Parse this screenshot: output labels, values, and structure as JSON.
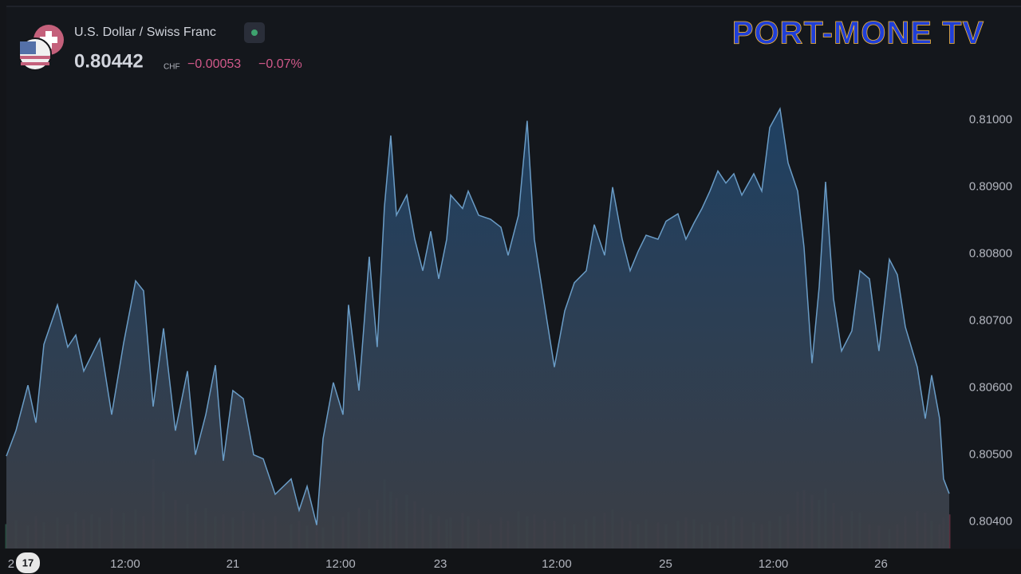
{
  "chart_data": {
    "type": "area",
    "title": "U.S. Dollar / Swiss Franc",
    "price": "0.80442",
    "currency": "CHF",
    "change": "−0.00053",
    "change_pct": "−0.07%",
    "logo": "PORT-MONE TV",
    "line_color": "#6a9cc6",
    "x": [
      0,
      1.07,
      2.4,
      3.29,
      4.18,
      5.69,
      6.84,
      7.73,
      8.62,
      9.51,
      10.4,
      11.73,
      13.07,
      14.4,
      15.29,
      16.36,
      17.51,
      18.84,
      20.18,
      21.07,
      22.22,
      23.29,
      24.18,
      25.24,
      26.4,
      27.56,
      28.62,
      29.96,
      31.73,
      32.62,
      33.51,
      34.58,
      35.29,
      36.44,
      37.51,
      38.13,
      39.29,
      40.44,
      41.33,
      42.13,
      42.84,
      43.47,
      44.62,
      45.51,
      46.4,
      47.29,
      48.18,
      49.07,
      49.51,
      50.84,
      51.47,
      52.62,
      53.96,
      55.11,
      55.91,
      57.07,
      58.04,
      58.84,
      60,
      61.07,
      62.22,
      63.29,
      64.62,
      65.51,
      66.67,
      67.56,
      68.62,
      69.51,
      70.4,
      71.29,
      72.62,
      73.51,
      74.84,
      75.73,
      76.62,
      77.51,
      78.4,
      79.29,
      80.18,
      81.07,
      81.96,
      83.29,
      84.18,
      85.07,
      86.22,
      87.11,
      88.18,
      88.89,
      89.78,
      90.58,
      91.29,
      92.18,
      93.07,
      94.22,
      95.11,
      96.18,
      97.24,
      98.4,
      99.29,
      100.18,
      101.51,
      102.4,
      103.11,
      104,
      104.44,
      105.07
    ],
    "values": [
      0.80498,
      0.80536,
      0.80604,
      0.80548,
      0.80665,
      0.80724,
      0.80661,
      0.80679,
      0.80625,
      0.80649,
      0.80673,
      0.8056,
      0.80667,
      0.8076,
      0.80745,
      0.80572,
      0.80689,
      0.80536,
      0.80625,
      0.805,
      0.8056,
      0.80634,
      0.80491,
      0.80596,
      0.80584,
      0.805,
      0.80494,
      0.80441,
      0.80464,
      0.80417,
      0.80453,
      0.80395,
      0.80524,
      0.80608,
      0.8056,
      0.80724,
      0.80596,
      0.80796,
      0.80661,
      0.8087,
      0.80977,
      0.80858,
      0.80888,
      0.80822,
      0.80775,
      0.80834,
      0.80763,
      0.80822,
      0.80888,
      0.80868,
      0.80894,
      0.80858,
      0.80852,
      0.8084,
      0.80798,
      0.80858,
      0.80999,
      0.80822,
      0.80721,
      0.80631,
      0.80715,
      0.80757,
      0.80775,
      0.80844,
      0.80798,
      0.809,
      0.80822,
      0.80775,
      0.80804,
      0.80828,
      0.80822,
      0.80849,
      0.8086,
      0.80822,
      0.80846,
      0.80868,
      0.80894,
      0.80924,
      0.80906,
      0.8092,
      0.80888,
      0.8092,
      0.80894,
      0.80989,
      0.81017,
      0.80936,
      0.80894,
      0.8081,
      0.80637,
      0.80751,
      0.80908,
      0.80733,
      0.80655,
      0.80685,
      0.80775,
      0.80763,
      0.80655,
      0.80792,
      0.80769,
      0.80691,
      0.80631,
      0.80554,
      0.80619,
      0.80554,
      0.80464,
      0.80442
    ],
    "volume": [
      30,
      35,
      28,
      40,
      32,
      38,
      30,
      45,
      36,
      42,
      38,
      50,
      44,
      48,
      40,
      110,
      70,
      60,
      55,
      45,
      50,
      40,
      42,
      38,
      46,
      44,
      36,
      40,
      30,
      34,
      28,
      32,
      26,
      40,
      38,
      45,
      50,
      48,
      60,
      85,
      70,
      62,
      66,
      58,
      50,
      42,
      40,
      36,
      38,
      44,
      40,
      36,
      30,
      38,
      34,
      46,
      40,
      42,
      36,
      34,
      38,
      30,
      36,
      40,
      44,
      48,
      38,
      34,
      30,
      36,
      32,
      30,
      34,
      38,
      36,
      30,
      32,
      28,
      36,
      40,
      38,
      32,
      30,
      34,
      40,
      42,
      70,
      72,
      66,
      60,
      74,
      56,
      40,
      46,
      44,
      30,
      28,
      24,
      30,
      40,
      46,
      44,
      34,
      30,
      38,
      42
    ],
    "xlim": [
      0,
      105.07
    ],
    "xticks": [
      {
        "value": 0.53,
        "label": "2"
      },
      {
        "value": 13.24,
        "label": "12:00"
      },
      {
        "value": 25.24,
        "label": "21"
      },
      {
        "value": 37.24,
        "label": "12:00"
      },
      {
        "value": 48.36,
        "label": "23"
      },
      {
        "value": 61.33,
        "label": "12:00"
      },
      {
        "value": 73.47,
        "label": "25"
      },
      {
        "value": 85.47,
        "label": "12:00"
      },
      {
        "value": 97.47,
        "label": "26"
      }
    ],
    "ylim": [
      0.8036,
      0.8117
    ],
    "yticks": [
      {
        "value": 0.804,
        "label": "0.80400"
      },
      {
        "value": 0.805,
        "label": "0.80500"
      },
      {
        "value": 0.806,
        "label": "0.80600"
      },
      {
        "value": 0.807,
        "label": "0.80700"
      },
      {
        "value": 0.808,
        "label": "0.80800"
      },
      {
        "value": 0.809,
        "label": "0.80900"
      },
      {
        "value": 0.81,
        "label": "0.81000"
      }
    ],
    "grid": false
  }
}
